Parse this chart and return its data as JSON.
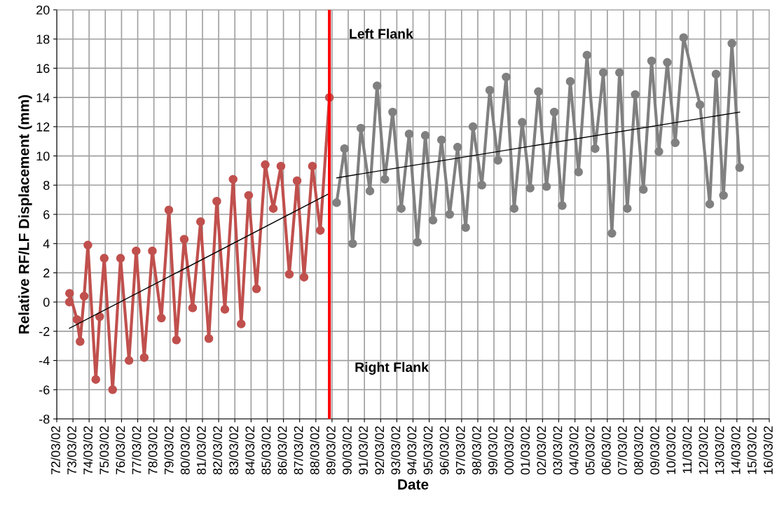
{
  "chart_data": {
    "type": "line",
    "xlabel": "Date",
    "ylabel": "Relative RF/LF Displacement (mm)",
    "xlim": [
      "1972-03-02",
      "2016-03-02"
    ],
    "xticks": [
      {
        "value": "1972-03-02",
        "label": "72/03/02"
      },
      {
        "value": "1973-03-02",
        "label": "73/03/02"
      },
      {
        "value": "1974-03-02",
        "label": "74/03/02"
      },
      {
        "value": "1975-03-02",
        "label": "75/03/02"
      },
      {
        "value": "1976-03-02",
        "label": "76/03/02"
      },
      {
        "value": "1977-03-02",
        "label": "77/03/02"
      },
      {
        "value": "1978-03-02",
        "label": "78/03/02"
      },
      {
        "value": "1979-03-02",
        "label": "79/03/02"
      },
      {
        "value": "1980-03-02",
        "label": "80/03/02"
      },
      {
        "value": "1981-03-02",
        "label": "81/03/02"
      },
      {
        "value": "1982-03-02",
        "label": "82/03/02"
      },
      {
        "value": "1983-03-02",
        "label": "83/03/02"
      },
      {
        "value": "1984-03-02",
        "label": "84/03/02"
      },
      {
        "value": "1985-03-02",
        "label": "85/03/02"
      },
      {
        "value": "1986-03-02",
        "label": "86/03/02"
      },
      {
        "value": "1987-03-02",
        "label": "87/03/02"
      },
      {
        "value": "1988-03-02",
        "label": "88/03/02"
      },
      {
        "value": "1989-03-02",
        "label": "89/03/02"
      },
      {
        "value": "1990-03-02",
        "label": "90/03/02"
      },
      {
        "value": "1991-03-02",
        "label": "91/03/02"
      },
      {
        "value": "1992-03-02",
        "label": "92/03/02"
      },
      {
        "value": "1993-03-02",
        "label": "93/03/02"
      },
      {
        "value": "1994-03-02",
        "label": "94/03/02"
      },
      {
        "value": "1995-03-02",
        "label": "95/03/02"
      },
      {
        "value": "1996-03-02",
        "label": "96/03/02"
      },
      {
        "value": "1997-03-02",
        "label": "97/03/02"
      },
      {
        "value": "1998-03-02",
        "label": "98/03/02"
      },
      {
        "value": "1999-03-02",
        "label": "99/03/02"
      },
      {
        "value": "2000-03-02",
        "label": "00/03/02"
      },
      {
        "value": "2001-03-02",
        "label": "01/03/02"
      },
      {
        "value": "2002-03-02",
        "label": "02/03/02"
      },
      {
        "value": "2003-03-02",
        "label": "03/03/02"
      },
      {
        "value": "2004-03-02",
        "label": "04/03/02"
      },
      {
        "value": "2005-03-02",
        "label": "05/03/02"
      },
      {
        "value": "2006-03-02",
        "label": "06/03/02"
      },
      {
        "value": "2007-03-02",
        "label": "07/03/02"
      },
      {
        "value": "2008-03-02",
        "label": "08/03/02"
      },
      {
        "value": "2009-03-02",
        "label": "09/03/02"
      },
      {
        "value": "2010-03-02",
        "label": "10/03/02"
      },
      {
        "value": "2011-03-02",
        "label": "11/03/02"
      },
      {
        "value": "2012-03-02",
        "label": "12/03/02"
      },
      {
        "value": "2013-03-02",
        "label": "13/03/02"
      },
      {
        "value": "2014-03-02",
        "label": "14/03/02"
      },
      {
        "value": "2015-03-02",
        "label": "15/03/02"
      },
      {
        "value": "2016-03-02",
        "label": "16/03/02"
      }
    ],
    "ylim": [
      -8,
      20
    ],
    "yticks": [
      -8,
      -6,
      -4,
      -2,
      0,
      2,
      4,
      6,
      8,
      10,
      12,
      14,
      16,
      18,
      20
    ],
    "grid": true,
    "legend": false,
    "marker": "circle",
    "line_style": "solid",
    "series": [
      {
        "color": "#c0504d",
        "x": [
          "1972-12-13",
          "1972-12-16",
          "1973-06-02",
          "1973-08-11",
          "1973-11-10",
          "1974-02-02",
          "1974-07-31",
          "1974-10-26",
          "1975-02-06",
          "1975-08-14",
          "1976-02-09",
          "1976-08-18",
          "1977-01-26",
          "1977-07-27",
          "1978-01-26",
          "1978-08-18",
          "1979-02-02",
          "1979-07-23",
          "1980-01-15",
          "1980-07-23",
          "1981-01-18",
          "1981-07-23",
          "1982-01-18",
          "1982-07-20",
          "1983-01-22",
          "1983-07-23",
          "1984-01-07",
          "1984-07-02",
          "1985-01-15",
          "1985-07-16",
          "1986-01-04",
          "1986-07-12",
          "1987-01-04",
          "1987-06-10",
          "1987-12-16",
          "1988-06-10",
          "1989-01-01"
        ],
        "values": [
          0.0,
          0.6,
          -1.2,
          -2.7,
          0.4,
          3.9,
          -5.3,
          -1.0,
          3.0,
          -6.0,
          3.0,
          -4.0,
          3.5,
          -3.8,
          3.5,
          -1.1,
          6.3,
          -2.6,
          4.3,
          -0.4,
          5.5,
          -2.5,
          6.9,
          -0.5,
          8.4,
          -1.5,
          7.3,
          0.9,
          9.4,
          6.4,
          9.3,
          1.9,
          8.3,
          1.7,
          9.3,
          4.9,
          14.0
        ]
      },
      {
        "color": "#808080",
        "x": [
          "1989-06-13",
          "1989-12-09",
          "1990-06-10",
          "1990-12-13",
          "1991-07-05",
          "1991-12-13",
          "1992-06-06",
          "1992-11-28",
          "1993-06-10",
          "1993-12-05",
          "1994-06-10",
          "1994-12-05",
          "1995-05-26",
          "1995-12-05",
          "1996-06-06",
          "1996-12-02",
          "1997-06-02",
          "1997-11-14",
          "1998-06-02",
          "1998-11-28",
          "1999-05-30",
          "1999-12-02",
          "2000-05-30",
          "2000-11-28",
          "2001-05-26",
          "2001-11-28",
          "2002-05-30",
          "2002-11-21",
          "2003-05-19",
          "2003-11-17",
          "2004-05-22",
          "2004-11-28",
          "2005-05-30",
          "2005-12-02",
          "2006-06-13",
          "2006-12-02",
          "2007-05-26",
          "2007-11-21",
          "2008-05-22",
          "2008-11-25",
          "2009-05-08",
          "2009-11-14",
          "2010-05-11",
          "2010-11-17",
          "2011-11-21",
          "2012-06-28",
          "2012-11-17",
          "2013-05-04",
          "2013-11-10",
          "2014-05-04"
        ],
        "values": [
          6.8,
          10.5,
          4.0,
          11.9,
          7.6,
          14.8,
          8.4,
          13.0,
          6.4,
          11.5,
          4.1,
          11.4,
          5.6,
          11.1,
          6.0,
          10.6,
          5.1,
          12.0,
          8.0,
          14.5,
          9.7,
          15.4,
          6.4,
          12.3,
          7.8,
          14.4,
          7.9,
          13.0,
          6.6,
          15.1,
          8.9,
          16.9,
          10.5,
          15.7,
          4.7,
          15.7,
          6.4,
          14.2,
          7.7,
          16.5,
          10.3,
          16.4,
          10.9,
          18.1,
          13.5,
          6.7,
          15.6,
          7.3,
          17.7,
          9.2
        ]
      },
      {
        "type": "line",
        "color": "#000000",
        "marker": "none",
        "x": [
          "1972-12-13",
          "1988-12-16"
        ],
        "values": [
          -1.8,
          7.4
        ]
      },
      {
        "type": "line",
        "color": "#000000",
        "marker": "none",
        "x": [
          "1989-06-17",
          "2014-05-04"
        ],
        "values": [
          8.5,
          13.0
        ]
      }
    ],
    "ref_lines": [
      {
        "axis": "x",
        "value": "1989-01-01",
        "color": "#ff0000",
        "line_style": "solid"
      }
    ],
    "annotations": [
      "Left Flank",
      "Right Flank"
    ]
  }
}
